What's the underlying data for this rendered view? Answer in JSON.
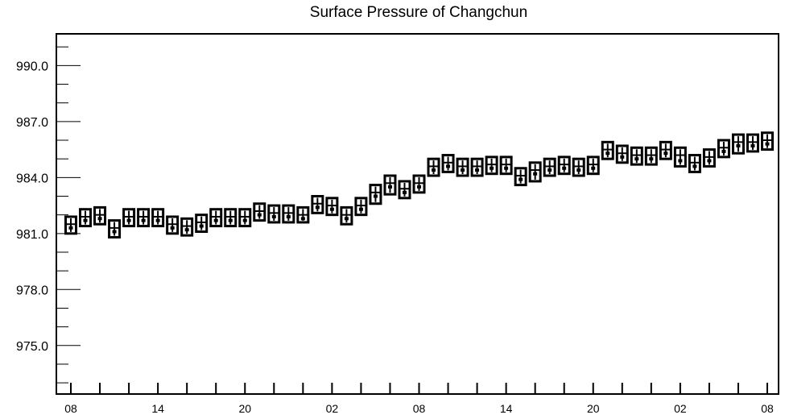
{
  "chart_data": {
    "type": "box",
    "title": "Surface Pressure of Changchun",
    "xlabel": "",
    "ylabel": "",
    "ylim": [
      972.4,
      991.7
    ],
    "y_ticks": [
      975.0,
      978.0,
      981.0,
      984.0,
      987.0,
      990.0
    ],
    "y_tick_labels": [
      "975.0",
      "978.0",
      "981.0",
      "984.0",
      "987.0",
      "990.0"
    ],
    "x_tick_labels": [
      "08",
      "14",
      "20",
      "02",
      "08",
      "14",
      "20",
      "02",
      "08"
    ],
    "x_tick_every": 6,
    "grid": false,
    "boxes": [
      {
        "x": 0,
        "q1": 981.0,
        "q3": 981.9,
        "median": 981.5,
        "mean": 981.3
      },
      {
        "x": 1,
        "q1": 981.4,
        "q3": 982.3,
        "median": 981.9,
        "mean": 981.7
      },
      {
        "x": 2,
        "q1": 981.5,
        "q3": 982.4,
        "median": 982.0,
        "mean": 981.8
      },
      {
        "x": 3,
        "q1": 980.8,
        "q3": 981.7,
        "median": 981.3,
        "mean": 981.1
      },
      {
        "x": 4,
        "q1": 981.4,
        "q3": 982.3,
        "median": 981.9,
        "mean": 981.7
      },
      {
        "x": 5,
        "q1": 981.4,
        "q3": 982.3,
        "median": 981.9,
        "mean": 981.7
      },
      {
        "x": 6,
        "q1": 981.4,
        "q3": 982.3,
        "median": 981.9,
        "mean": 981.7
      },
      {
        "x": 7,
        "q1": 981.0,
        "q3": 981.9,
        "median": 981.5,
        "mean": 981.3
      },
      {
        "x": 8,
        "q1": 980.9,
        "q3": 981.8,
        "median": 981.4,
        "mean": 981.2
      },
      {
        "x": 9,
        "q1": 981.1,
        "q3": 982.0,
        "median": 981.6,
        "mean": 981.4
      },
      {
        "x": 10,
        "q1": 981.4,
        "q3": 982.3,
        "median": 981.9,
        "mean": 981.7
      },
      {
        "x": 11,
        "q1": 981.4,
        "q3": 982.3,
        "median": 981.9,
        "mean": 981.7
      },
      {
        "x": 12,
        "q1": 981.4,
        "q3": 982.3,
        "median": 981.9,
        "mean": 981.7
      },
      {
        "x": 13,
        "q1": 981.7,
        "q3": 982.6,
        "median": 982.2,
        "mean": 982.0
      },
      {
        "x": 14,
        "q1": 981.6,
        "q3": 982.5,
        "median": 982.1,
        "mean": 981.9
      },
      {
        "x": 15,
        "q1": 981.6,
        "q3": 982.5,
        "median": 982.1,
        "mean": 981.9
      },
      {
        "x": 16,
        "q1": 981.6,
        "q3": 982.4,
        "median": 982.0,
        "mean": 981.8
      },
      {
        "x": 17,
        "q1": 982.1,
        "q3": 983.0,
        "median": 982.6,
        "mean": 982.4
      },
      {
        "x": 18,
        "q1": 982.0,
        "q3": 982.9,
        "median": 982.5,
        "mean": 982.3
      },
      {
        "x": 19,
        "q1": 981.5,
        "q3": 982.4,
        "median": 982.0,
        "mean": 981.8
      },
      {
        "x": 20,
        "q1": 982.0,
        "q3": 982.9,
        "median": 982.5,
        "mean": 982.3
      },
      {
        "x": 21,
        "q1": 982.6,
        "q3": 983.6,
        "median": 983.2,
        "mean": 983.0
      },
      {
        "x": 22,
        "q1": 983.1,
        "q3": 984.1,
        "median": 983.7,
        "mean": 983.5
      },
      {
        "x": 23,
        "q1": 982.9,
        "q3": 983.8,
        "median": 983.4,
        "mean": 983.2
      },
      {
        "x": 24,
        "q1": 983.2,
        "q3": 984.1,
        "median": 983.7,
        "mean": 983.5
      },
      {
        "x": 25,
        "q1": 984.1,
        "q3": 985.0,
        "median": 984.6,
        "mean": 984.4
      },
      {
        "x": 26,
        "q1": 984.3,
        "q3": 985.2,
        "median": 984.8,
        "mean": 984.6
      },
      {
        "x": 27,
        "q1": 984.1,
        "q3": 985.0,
        "median": 984.6,
        "mean": 984.4
      },
      {
        "x": 28,
        "q1": 984.1,
        "q3": 985.0,
        "median": 984.6,
        "mean": 984.4
      },
      {
        "x": 29,
        "q1": 984.2,
        "q3": 985.1,
        "median": 984.7,
        "mean": 984.5
      },
      {
        "x": 30,
        "q1": 984.2,
        "q3": 985.1,
        "median": 984.7,
        "mean": 984.5
      },
      {
        "x": 31,
        "q1": 983.6,
        "q3": 984.5,
        "median": 984.1,
        "mean": 983.9
      },
      {
        "x": 32,
        "q1": 983.8,
        "q3": 984.8,
        "median": 984.4,
        "mean": 984.2
      },
      {
        "x": 33,
        "q1": 984.1,
        "q3": 985.0,
        "median": 984.6,
        "mean": 984.4
      },
      {
        "x": 34,
        "q1": 984.2,
        "q3": 985.1,
        "median": 984.7,
        "mean": 984.5
      },
      {
        "x": 35,
        "q1": 984.1,
        "q3": 985.0,
        "median": 984.6,
        "mean": 984.4
      },
      {
        "x": 36,
        "q1": 984.2,
        "q3": 985.1,
        "median": 984.7,
        "mean": 984.5
      },
      {
        "x": 37,
        "q1": 985.0,
        "q3": 985.9,
        "median": 985.5,
        "mean": 985.3
      },
      {
        "x": 38,
        "q1": 984.8,
        "q3": 985.7,
        "median": 985.3,
        "mean": 985.1
      },
      {
        "x": 39,
        "q1": 984.7,
        "q3": 985.6,
        "median": 985.2,
        "mean": 985.0
      },
      {
        "x": 40,
        "q1": 984.7,
        "q3": 985.6,
        "median": 985.2,
        "mean": 985.0
      },
      {
        "x": 41,
        "q1": 985.0,
        "q3": 985.9,
        "median": 985.5,
        "mean": 985.3
      },
      {
        "x": 42,
        "q1": 984.6,
        "q3": 985.6,
        "median": 985.2,
        "mean": 984.9
      },
      {
        "x": 43,
        "q1": 984.3,
        "q3": 985.2,
        "median": 984.8,
        "mean": 984.6
      },
      {
        "x": 44,
        "q1": 984.6,
        "q3": 985.5,
        "median": 985.1,
        "mean": 984.9
      },
      {
        "x": 45,
        "q1": 985.1,
        "q3": 986.0,
        "median": 985.6,
        "mean": 985.4
      },
      {
        "x": 46,
        "q1": 985.3,
        "q3": 986.3,
        "median": 985.9,
        "mean": 985.7
      },
      {
        "x": 47,
        "q1": 985.4,
        "q3": 986.3,
        "median": 985.9,
        "mean": 985.7
      },
      {
        "x": 48,
        "q1": 985.5,
        "q3": 986.4,
        "median": 986.0,
        "mean": 985.8
      }
    ]
  }
}
